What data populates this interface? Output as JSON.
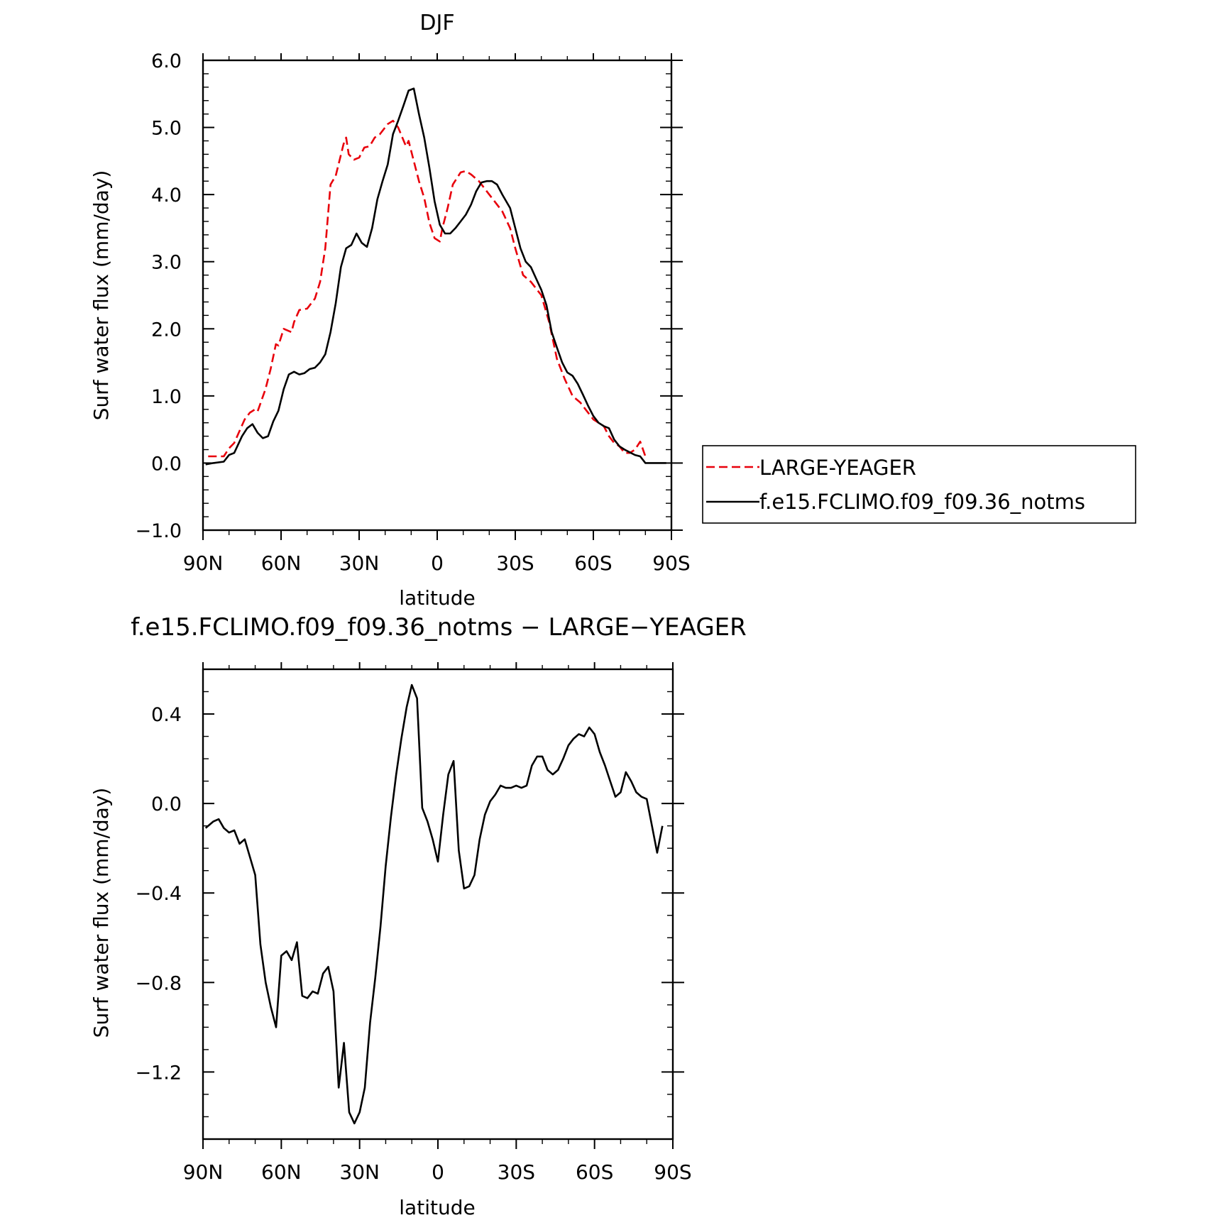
{
  "chart_data": [
    {
      "type": "line",
      "title": "DJF",
      "xlabel": "latitude",
      "ylabel": "Surf water flux (mm/day)",
      "xlim": [
        90,
        -90
      ],
      "ylim": [
        -1.0,
        6.0
      ],
      "x_ticks": [
        "90N",
        "60N",
        "30N",
        "0",
        "30S",
        "60S",
        "90S"
      ],
      "y_ticks": [
        "6.0",
        "5.0",
        "4.0",
        "3.0",
        "2.0",
        "1.0",
        "0.0",
        "−1.0"
      ],
      "legend_placement": "right",
      "series": [
        {
          "name": "LARGE-YEAGER",
          "color": "#e8000b",
          "dash": "dashed",
          "points": [
            [
              88,
              0.1
            ],
            [
              82,
              0.1
            ],
            [
              80,
              0.22
            ],
            [
              78,
              0.3
            ],
            [
              74,
              0.65
            ],
            [
              72,
              0.75
            ],
            [
              70,
              0.8
            ],
            [
              69,
              0.77
            ],
            [
              66,
              1.1
            ],
            [
              64,
              1.4
            ],
            [
              62,
              1.77
            ],
            [
              61,
              1.75
            ],
            [
              59,
              2.0
            ],
            [
              56,
              1.95
            ],
            [
              55,
              2.1
            ],
            [
              53,
              2.28
            ],
            [
              50,
              2.3
            ],
            [
              48,
              2.4
            ],
            [
              47,
              2.45
            ],
            [
              45,
              2.7
            ],
            [
              43,
              3.2
            ],
            [
              41,
              4.15
            ],
            [
              39,
              4.28
            ],
            [
              36,
              4.75
            ],
            [
              35,
              4.85
            ],
            [
              34,
              4.6
            ],
            [
              32,
              4.52
            ],
            [
              30,
              4.55
            ],
            [
              28,
              4.7
            ],
            [
              26,
              4.72
            ],
            [
              24,
              4.85
            ],
            [
              22,
              4.9
            ],
            [
              19,
              5.05
            ],
            [
              17,
              5.1
            ],
            [
              15,
              5.0
            ],
            [
              12,
              4.72
            ],
            [
              11,
              4.8
            ],
            [
              9,
              4.5
            ],
            [
              7,
              4.2
            ],
            [
              5,
              3.95
            ],
            [
              3,
              3.58
            ],
            [
              1,
              3.35
            ],
            [
              -1,
              3.3
            ],
            [
              -2,
              3.5
            ],
            [
              -4,
              3.8
            ],
            [
              -6,
              4.15
            ],
            [
              -9,
              4.33
            ],
            [
              -11,
              4.35
            ],
            [
              -13,
              4.3
            ],
            [
              -16,
              4.2
            ],
            [
              -19,
              4.05
            ],
            [
              -22,
              3.9
            ],
            [
              -25,
              3.75
            ],
            [
              -28,
              3.5
            ],
            [
              -30,
              3.2
            ],
            [
              -33,
              2.8
            ],
            [
              -36,
              2.7
            ],
            [
              -38,
              2.6
            ],
            [
              -40,
              2.5
            ],
            [
              -43,
              2.1
            ],
            [
              -46,
              1.55
            ],
            [
              -49,
              1.25
            ],
            [
              -52,
              1.0
            ],
            [
              -55,
              0.9
            ],
            [
              -57,
              0.8
            ],
            [
              -60,
              0.65
            ],
            [
              -62,
              0.6
            ],
            [
              -64,
              0.55
            ],
            [
              -66,
              0.4
            ],
            [
              -68,
              0.3
            ],
            [
              -70,
              0.25
            ],
            [
              -72,
              0.15
            ],
            [
              -74,
              0.15
            ],
            [
              -76,
              0.2
            ],
            [
              -78,
              0.32
            ],
            [
              -80,
              0.1
            ]
          ]
        },
        {
          "name": "f.e15.FCLIMO.f09_f09.36_notms",
          "color": "#000000",
          "dash": "solid",
          "points": [
            [
              89,
              -0.02
            ],
            [
              86,
              0.0
            ],
            [
              82,
              0.02
            ],
            [
              80,
              0.12
            ],
            [
              78,
              0.15
            ],
            [
              75,
              0.4
            ],
            [
              73,
              0.52
            ],
            [
              71,
              0.58
            ],
            [
              69,
              0.45
            ],
            [
              67,
              0.37
            ],
            [
              65,
              0.4
            ],
            [
              63,
              0.62
            ],
            [
              61,
              0.78
            ],
            [
              59,
              1.1
            ],
            [
              57,
              1.32
            ],
            [
              55,
              1.36
            ],
            [
              53,
              1.32
            ],
            [
              51,
              1.34
            ],
            [
              49,
              1.4
            ],
            [
              47,
              1.42
            ],
            [
              45,
              1.5
            ],
            [
              43,
              1.62
            ],
            [
              41,
              1.95
            ],
            [
              39,
              2.38
            ],
            [
              37,
              2.92
            ],
            [
              35,
              3.2
            ],
            [
              33,
              3.25
            ],
            [
              31,
              3.42
            ],
            [
              29,
              3.28
            ],
            [
              27,
              3.22
            ],
            [
              25,
              3.5
            ],
            [
              23,
              3.93
            ],
            [
              21,
              4.2
            ],
            [
              19,
              4.45
            ],
            [
              17,
              4.9
            ],
            [
              15,
              5.1
            ],
            [
              13,
              5.32
            ],
            [
              11,
              5.55
            ],
            [
              9,
              5.58
            ],
            [
              7,
              5.2
            ],
            [
              5,
              4.85
            ],
            [
              3,
              4.4
            ],
            [
              1,
              3.9
            ],
            [
              -1,
              3.55
            ],
            [
              -3,
              3.42
            ],
            [
              -5,
              3.42
            ],
            [
              -7,
              3.5
            ],
            [
              -9,
              3.6
            ],
            [
              -11,
              3.7
            ],
            [
              -13,
              3.85
            ],
            [
              -15,
              4.05
            ],
            [
              -17,
              4.18
            ],
            [
              -19,
              4.2
            ],
            [
              -21,
              4.2
            ],
            [
              -23,
              4.15
            ],
            [
              -25,
              4.0
            ],
            [
              -28,
              3.8
            ],
            [
              -30,
              3.5
            ],
            [
              -32,
              3.2
            ],
            [
              -34,
              3.0
            ],
            [
              -36,
              2.92
            ],
            [
              -38,
              2.75
            ],
            [
              -40,
              2.58
            ],
            [
              -42,
              2.35
            ],
            [
              -44,
              1.95
            ],
            [
              -46,
              1.72
            ],
            [
              -48,
              1.5
            ],
            [
              -50,
              1.35
            ],
            [
              -52,
              1.3
            ],
            [
              -54,
              1.18
            ],
            [
              -56,
              1.02
            ],
            [
              -58,
              0.85
            ],
            [
              -60,
              0.7
            ],
            [
              -62,
              0.6
            ],
            [
              -64,
              0.55
            ],
            [
              -66,
              0.52
            ],
            [
              -68,
              0.35
            ],
            [
              -70,
              0.25
            ],
            [
              -72,
              0.2
            ],
            [
              -74,
              0.16
            ],
            [
              -76,
              0.12
            ],
            [
              -78,
              0.1
            ],
            [
              -80,
              0.0
            ],
            [
              -84,
              0.0
            ],
            [
              -88,
              0.0
            ]
          ]
        }
      ]
    },
    {
      "type": "line",
      "title": "f.e15.FCLIMO.f09_f09.36_notms − LARGE−YEAGER",
      "xlabel": "latitude",
      "ylabel": "Surf water flux (mm/day)",
      "xlim": [
        90,
        -90
      ],
      "ylim": [
        -1.5,
        0.6
      ],
      "x_ticks": [
        "90N",
        "60N",
        "30N",
        "0",
        "30S",
        "60S",
        "90S"
      ],
      "y_ticks": [
        "0.4",
        "0.0",
        "−0.4",
        "−0.8",
        "−1.2"
      ],
      "series": [
        {
          "color": "#000000",
          "dash": "solid",
          "points": [
            [
              89,
              -0.11
            ],
            [
              86,
              -0.08
            ],
            [
              84,
              -0.07
            ],
            [
              82,
              -0.11
            ],
            [
              80,
              -0.13
            ],
            [
              78,
              -0.12
            ],
            [
              76,
              -0.18
            ],
            [
              74,
              -0.16
            ],
            [
              72,
              -0.24
            ],
            [
              70,
              -0.32
            ],
            [
              68,
              -0.63
            ],
            [
              66,
              -0.8
            ],
            [
              64,
              -0.91
            ],
            [
              62,
              -1.0
            ],
            [
              60,
              -0.68
            ],
            [
              58,
              -0.66
            ],
            [
              56,
              -0.7
            ],
            [
              54,
              -0.62
            ],
            [
              52,
              -0.86
            ],
            [
              50,
              -0.87
            ],
            [
              48,
              -0.84
            ],
            [
              46,
              -0.85
            ],
            [
              44,
              -0.76
            ],
            [
              42,
              -0.73
            ],
            [
              40,
              -0.84
            ],
            [
              38,
              -1.27
            ],
            [
              36,
              -1.07
            ],
            [
              34,
              -1.38
            ],
            [
              32,
              -1.43
            ],
            [
              30,
              -1.38
            ],
            [
              28,
              -1.27
            ],
            [
              26,
              -0.98
            ],
            [
              24,
              -0.78
            ],
            [
              22,
              -0.55
            ],
            [
              20,
              -0.28
            ],
            [
              18,
              -0.06
            ],
            [
              16,
              0.13
            ],
            [
              14,
              0.29
            ],
            [
              12,
              0.43
            ],
            [
              10,
              0.53
            ],
            [
              8,
              0.47
            ],
            [
              6,
              -0.02
            ],
            [
              4,
              -0.08
            ],
            [
              2,
              -0.16
            ],
            [
              0,
              -0.26
            ],
            [
              -2,
              -0.05
            ],
            [
              -4,
              0.13
            ],
            [
              -6,
              0.19
            ],
            [
              -8,
              -0.21
            ],
            [
              -10,
              -0.38
            ],
            [
              -12,
              -0.37
            ],
            [
              -14,
              -0.32
            ],
            [
              -16,
              -0.16
            ],
            [
              -18,
              -0.05
            ],
            [
              -20,
              0.01
            ],
            [
              -22,
              0.04
            ],
            [
              -24,
              0.08
            ],
            [
              -26,
              0.07
            ],
            [
              -28,
              0.07
            ],
            [
              -30,
              0.08
            ],
            [
              -32,
              0.07
            ],
            [
              -34,
              0.08
            ],
            [
              -36,
              0.17
            ],
            [
              -38,
              0.21
            ],
            [
              -40,
              0.21
            ],
            [
              -42,
              0.15
            ],
            [
              -44,
              0.13
            ],
            [
              -46,
              0.15
            ],
            [
              -48,
              0.2
            ],
            [
              -50,
              0.26
            ],
            [
              -52,
              0.29
            ],
            [
              -54,
              0.31
            ],
            [
              -56,
              0.3
            ],
            [
              -58,
              0.34
            ],
            [
              -60,
              0.31
            ],
            [
              -62,
              0.23
            ],
            [
              -64,
              0.17
            ],
            [
              -66,
              0.1
            ],
            [
              -68,
              0.03
            ],
            [
              -70,
              0.05
            ],
            [
              -72,
              0.14
            ],
            [
              -74,
              0.1
            ],
            [
              -76,
              0.05
            ],
            [
              -78,
              0.03
            ],
            [
              -80,
              0.02
            ],
            [
              -82,
              -0.1
            ],
            [
              -84,
              -0.22
            ],
            [
              -86,
              -0.1
            ]
          ]
        }
      ]
    }
  ]
}
